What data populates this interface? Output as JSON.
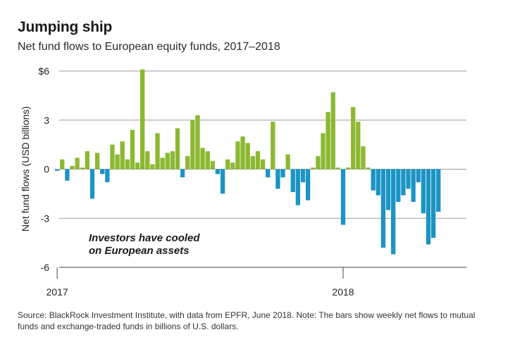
{
  "header": {
    "title": "Jumping ship",
    "subtitle": "Net fund flows to European equity funds, 2017–2018"
  },
  "footer": {
    "source": "Source: BlackRock Investment Institute, with data from EPFR, June 2018. Note: The bars show weekly net flows to mutual funds and exchange-traded funds in billions of U.S. dollars."
  },
  "chart_data": {
    "type": "bar",
    "title": "Jumping ship",
    "subtitle": "Net fund flows to European equity funds, 2017–2018",
    "ylabel": "Net fund flows (USD billions)",
    "xlabel": "",
    "ylim": [
      -6,
      6
    ],
    "yticks": [
      {
        "value": 6,
        "label": "$6"
      },
      {
        "value": 3,
        "label": "3"
      },
      {
        "value": 0,
        "label": "0"
      },
      {
        "value": -3,
        "label": "-3"
      },
      {
        "value": -6,
        "label": "-6"
      }
    ],
    "xticks": [
      {
        "index": 0,
        "label": "2017"
      },
      {
        "index": 57,
        "label": "2018"
      }
    ],
    "grid": true,
    "positive_color": "#8cb832",
    "negative_color": "#1b94c4",
    "annotation": [
      "Investors have cooled",
      "on European assets"
    ],
    "values": [
      -0.1,
      0.6,
      -0.7,
      0.2,
      0.7,
      0.1,
      1.1,
      -1.8,
      1.0,
      -0.3,
      -0.8,
      1.5,
      0.9,
      1.7,
      0.6,
      2.4,
      0.4,
      6.1,
      1.1,
      0.3,
      2.2,
      0.7,
      1.0,
      1.1,
      2.5,
      -0.5,
      0.8,
      3.0,
      3.3,
      1.3,
      1.1,
      0.5,
      -0.3,
      -1.5,
      0.6,
      0.4,
      1.7,
      2.0,
      1.6,
      0.8,
      1.1,
      0.6,
      -0.5,
      2.9,
      -1.2,
      -0.5,
      0.9,
      -1.4,
      -2.2,
      -0.8,
      -1.9,
      0.1,
      0.8,
      2.2,
      3.5,
      4.7,
      0.1,
      -3.4,
      0.1,
      3.8,
      2.9,
      1.4,
      0.1,
      -1.3,
      -1.6,
      -4.8,
      -2.5,
      -5.2,
      -2.0,
      -1.6,
      -1.2,
      -2.0,
      -0.8,
      -2.7,
      -4.6,
      -4.2,
      -2.6
    ]
  }
}
